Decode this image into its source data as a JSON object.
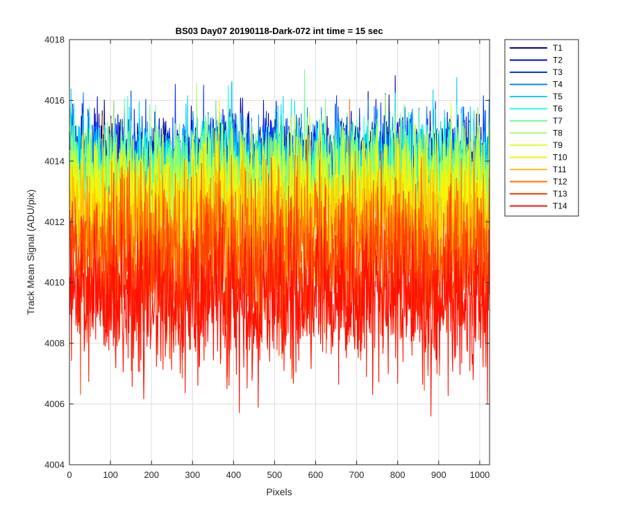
{
  "chart_data": {
    "type": "line",
    "title": "BS03 Day07 20190118-Dark-072 int time = 15 sec",
    "xlabel": "Pixels",
    "ylabel": "Track Mean Signal (ADU/pix)",
    "xlim": [
      0,
      1024
    ],
    "ylim": [
      4004,
      4018
    ],
    "xticks": [
      0,
      100,
      200,
      300,
      400,
      500,
      600,
      700,
      800,
      900,
      1000
    ],
    "yticks": [
      4004,
      4006,
      4008,
      4010,
      4012,
      4014,
      4016,
      4018
    ],
    "grid": true,
    "legend_position": "outside-top-right",
    "x": {
      "start": 1,
      "end": 1024,
      "step": 1
    },
    "series": [
      {
        "name": "T1",
        "color": "#00008f",
        "mean": 4014.2,
        "noise": 0.7
      },
      {
        "name": "T2",
        "color": "#0000df",
        "mean": 4014.1,
        "noise": 0.7
      },
      {
        "name": "T3",
        "color": "#0030ff",
        "mean": 4014.1,
        "noise": 0.72
      },
      {
        "name": "T4",
        "color": "#0080ff",
        "mean": 4014.0,
        "noise": 0.75
      },
      {
        "name": "T5",
        "color": "#00cfff",
        "mean": 4013.9,
        "noise": 0.8
      },
      {
        "name": "T6",
        "color": "#20ffdf",
        "mean": 4013.8,
        "noise": 0.8
      },
      {
        "name": "T7",
        "color": "#70ff8f",
        "mean": 4013.6,
        "noise": 0.85
      },
      {
        "name": "T8",
        "color": "#9fff60",
        "mean": 4013.3,
        "noise": 0.9
      },
      {
        "name": "T9",
        "color": "#dfff20",
        "mean": 4013.0,
        "noise": 0.95
      },
      {
        "name": "T10",
        "color": "#ffef00",
        "mean": 4012.5,
        "noise": 1.0
      },
      {
        "name": "T11",
        "color": "#ffbf00",
        "mean": 4011.9,
        "noise": 1.1
      },
      {
        "name": "T12",
        "color": "#ff7000",
        "mean": 4011.2,
        "noise": 1.2
      },
      {
        "name": "T13",
        "color": "#ff4000",
        "mean": 4010.4,
        "noise": 1.3
      },
      {
        "name": "T14",
        "color": "#ff1000",
        "mean": 4009.3,
        "noise": 1.2
      }
    ]
  }
}
